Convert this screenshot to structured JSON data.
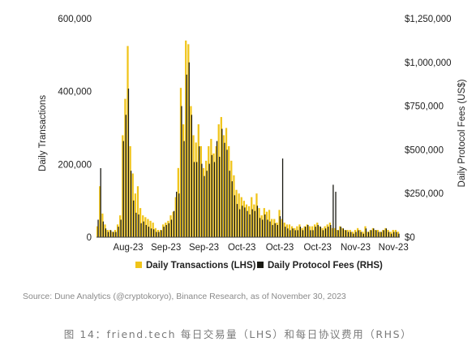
{
  "chart_data": {
    "type": "bar",
    "y_left": {
      "label": "Daily Transactions",
      "range": [
        0,
        600000
      ],
      "ticks": [
        0,
        200000,
        400000,
        600000
      ],
      "tick_labels": [
        "0",
        "200,000",
        "400,000",
        "600,000"
      ]
    },
    "y_right": {
      "label": "Daily Protocol Fees (US$)",
      "range": [
        0,
        1250000
      ],
      "ticks": [
        0,
        250000,
        500000,
        750000,
        1000000,
        1250000
      ],
      "tick_labels": [
        "$0",
        "$250,000",
        "$500,000",
        "$750,000",
        "$1,000,000",
        "$1,250,000"
      ]
    },
    "x_tick_labels": [
      "Aug-23",
      "Sep-23",
      "Sep-23",
      "Oct-23",
      "Oct-23",
      "Oct-23",
      "Nov-23",
      "Nov-23"
    ],
    "x_tick_positions": [
      12,
      27,
      42,
      57,
      72,
      87,
      102,
      117
    ],
    "legend_position": "bottom-center",
    "series": [
      {
        "name": "Daily Transactions (LHS)",
        "axis": "left",
        "color": "#f0c419",
        "values": [
          30000,
          140000,
          65000,
          35000,
          20000,
          20000,
          15000,
          20000,
          35000,
          60000,
          280000,
          380000,
          525000,
          250000,
          175000,
          120000,
          140000,
          80000,
          60000,
          55000,
          50000,
          45000,
          40000,
          25000,
          20000,
          20000,
          35000,
          40000,
          45000,
          60000,
          70000,
          110000,
          190000,
          410000,
          310000,
          540000,
          530000,
          360000,
          280000,
          260000,
          310000,
          250000,
          190000,
          210000,
          250000,
          270000,
          230000,
          250000,
          310000,
          330000,
          280000,
          300000,
          250000,
          210000,
          170000,
          130000,
          120000,
          110000,
          100000,
          90000,
          85000,
          110000,
          90000,
          120000,
          80000,
          60000,
          80000,
          70000,
          75000,
          50000,
          50000,
          40000,
          75000,
          50000,
          40000,
          35000,
          35000,
          30000,
          25000,
          30000,
          35000,
          25000,
          30000,
          35000,
          30000,
          30000,
          35000,
          40000,
          30000,
          25000,
          30000,
          35000,
          40000,
          25000,
          25000,
          20000,
          30000,
          25000,
          20000,
          20000,
          20000,
          15000,
          20000,
          25000,
          20000,
          15000,
          30000,
          15000,
          20000,
          25000,
          20000,
          20000,
          15000,
          20000,
          25000,
          20000,
          15000,
          20000,
          20000,
          15000
        ]
      },
      {
        "name": "Daily Protocol Fees (RHS)",
        "axis": "right",
        "color": "#1a1a14",
        "values": [
          100000,
          395000,
          90000,
          50000,
          30000,
          40000,
          30000,
          30000,
          60000,
          100000,
          550000,
          700000,
          850000,
          380000,
          210000,
          140000,
          130000,
          80000,
          90000,
          70000,
          60000,
          50000,
          45000,
          30000,
          30000,
          40000,
          60000,
          70000,
          80000,
          100000,
          150000,
          260000,
          250000,
          750000,
          550000,
          930000,
          1000000,
          700000,
          430000,
          430000,
          520000,
          420000,
          350000,
          380000,
          420000,
          470000,
          430000,
          550000,
          460000,
          620000,
          540000,
          500000,
          380000,
          320000,
          240000,
          190000,
          160000,
          180000,
          170000,
          150000,
          130000,
          160000,
          150000,
          180000,
          110000,
          100000,
          130000,
          100000,
          90000,
          70000,
          80000,
          70000,
          120000,
          450000,
          60000,
          50000,
          40000,
          50000,
          40000,
          40000,
          60000,
          40000,
          60000,
          70000,
          40000,
          40000,
          60000,
          70000,
          60000,
          40000,
          50000,
          60000,
          70000,
          300000,
          260000,
          40000,
          60000,
          50000,
          40000,
          30000,
          30000,
          20000,
          30000,
          40000,
          30000,
          20000,
          50000,
          30000,
          40000,
          50000,
          40000,
          30000,
          30000,
          40000,
          50000,
          30000,
          20000,
          30000,
          30000,
          20000
        ]
      }
    ]
  },
  "source_note": "Source: Dune Analytics (@cryptokoryo), Binance Research, as of November 30, 2023",
  "caption": "图 14：friend.tech 每日交易量（LHS）和每日协议费用（RHS）"
}
